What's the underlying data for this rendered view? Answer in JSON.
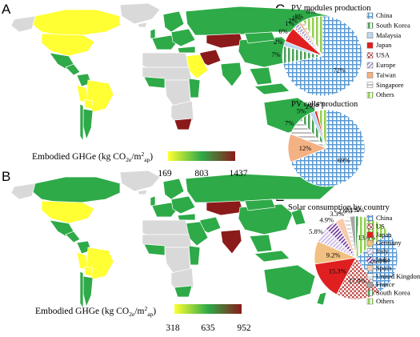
{
  "panels": {
    "A": "A",
    "B": "B",
    "C": "C",
    "D": "D",
    "E": "E"
  },
  "colors": {
    "china": "#5b9bd5",
    "south_korea": "#4da05a",
    "malaysia": "#bdd7ee",
    "japan": "#e02020",
    "usa": "#c0504d",
    "europe": "#9999cc",
    "taiwan": "#f4b183",
    "singapore": "#bfbfbf",
    "others": "#92d050",
    "germany": "#f2c080",
    "italy": "#c9b6e4",
    "india": "#7030a0",
    "spain": "#f8cbad",
    "united_kingdom": "#d9d9d9",
    "france": "#a6a6a6",
    "map_low": "#ffff33",
    "map_mid": "#2eaa48",
    "map_high": "#8b1a1a",
    "no_data": "#d9d9d9"
  },
  "chart_data": [
    {
      "type": "choropleth",
      "panel": "A",
      "legend_title": "Embodied GHGe (kg CO2e/m2ap)",
      "legend_ticks": [
        "169",
        "803",
        "1437"
      ],
      "range": [
        169,
        1437
      ]
    },
    {
      "type": "choropleth",
      "panel": "B",
      "legend_title": "Embodied GHGe (kg CO2e/m2ap)",
      "legend_ticks": [
        "318",
        "635",
        "952"
      ],
      "range": [
        318,
        952
      ]
    },
    {
      "type": "pie",
      "panel": "C",
      "title": "PV modules production",
      "slices": [
        {
          "name": "China",
          "value": 72,
          "label": "72%",
          "color": "#5b9bd5",
          "pattern": "grid"
        },
        {
          "name": "South Korea",
          "value": 7,
          "label": "7%",
          "color": "#4da05a",
          "pattern": "vstripe"
        },
        {
          "name": "Malaysia",
          "value": 2,
          "label": "2%",
          "color": "#bdd7ee",
          "pattern": "solid"
        },
        {
          "name": "Japan",
          "value": 6,
          "label": "6%",
          "color": "#e02020",
          "pattern": "solid"
        },
        {
          "name": "USA",
          "value": 1,
          "label": "1%",
          "color": "#c0504d",
          "pattern": "check"
        },
        {
          "name": "Europe",
          "value": 2,
          "label": "2%",
          "color": "#9999cc",
          "pattern": "dstripe"
        },
        {
          "name": "Taiwan",
          "value": 1,
          "label": "1%",
          "color": "#f4b183",
          "pattern": "solid"
        },
        {
          "name": "Singapore",
          "value": 1,
          "label": "1%",
          "color": "#bfbfbf",
          "pattern": "hstripe"
        },
        {
          "name": "Others",
          "value": 8,
          "label": "8%",
          "color": "#92d050",
          "pattern": "vstripe"
        }
      ],
      "legend": [
        "China",
        "South Korea",
        "Malaysia",
        "Japan",
        "USA",
        "Europe",
        "Taiwan",
        "Singapore",
        "Others"
      ]
    },
    {
      "type": "pie",
      "panel": "D",
      "title": "PV cells production",
      "slices": [
        {
          "name": "China",
          "value": 69,
          "label": "69%",
          "color": "#5b9bd5",
          "pattern": "grid"
        },
        {
          "name": "Taiwan",
          "value": 12,
          "label": "12%",
          "color": "#f4b183",
          "pattern": "solid"
        },
        {
          "name": "Singapore",
          "value": 7,
          "label": "7%",
          "color": "#bfbfbf",
          "pattern": "hstripe"
        },
        {
          "name": "South Korea",
          "value": 5,
          "label": "5%",
          "color": "#4da05a",
          "pattern": "vstripe"
        },
        {
          "name": "Malaysia",
          "value": 2,
          "label": "2%",
          "color": "#bdd7ee",
          "pattern": "solid"
        },
        {
          "name": "Japan",
          "value": 1,
          "label": "1%",
          "color": "#e02020",
          "pattern": "solid"
        },
        {
          "name": "Others",
          "value": 4,
          "label": "4%",
          "color": "#92d050",
          "pattern": "vstripe"
        }
      ]
    },
    {
      "type": "pie",
      "panel": "E",
      "title": "Solar consumption by country",
      "slices": [
        {
          "name": "China",
          "value": 26.8,
          "label": "26.8%",
          "color": "#5b9bd5",
          "pattern": "grid"
        },
        {
          "name": "US",
          "value": 17.9,
          "label": "17.9%",
          "color": "#c0504d",
          "pattern": "check"
        },
        {
          "name": "Japan",
          "value": 15.3,
          "label": "15.3%",
          "color": "#e02020",
          "pattern": "solid"
        },
        {
          "name": "Germany",
          "value": 9.2,
          "label": "9.2%",
          "color": "#f2c080",
          "pattern": "solid"
        },
        {
          "name": "Italy",
          "value": 5.8,
          "label": "5.8%",
          "color": "#c9b6e4",
          "pattern": "dstripe"
        },
        {
          "name": "India",
          "value": 4.9,
          "label": "4.9%",
          "color": "#7030a0",
          "pattern": "dstripe"
        },
        {
          "name": "Spain",
          "value": 3.3,
          "label": "3.3%",
          "color": "#f8cbad",
          "pattern": "solid"
        },
        {
          "name": "United Kingdom",
          "value": 2.6,
          "label": "2.6%",
          "color": "#d9d9d9",
          "pattern": "hstripe"
        },
        {
          "name": "France",
          "value": 2.1,
          "label": "2.1%",
          "color": "#a6a6a6",
          "pattern": "solid"
        },
        {
          "name": "South Korea",
          "value": 1.5,
          "label": "1.5%",
          "color": "#4da05a",
          "pattern": "vstripe"
        },
        {
          "name": "Others",
          "value": 13.6,
          "label": "13.6%",
          "color": "#92d050",
          "pattern": "vstripe"
        }
      ],
      "legend": [
        "China",
        "US",
        "Japan",
        "Germany",
        "Italy",
        "India",
        "Spain",
        "United Kingdom",
        "France",
        "South Korea",
        "Others"
      ]
    }
  ]
}
